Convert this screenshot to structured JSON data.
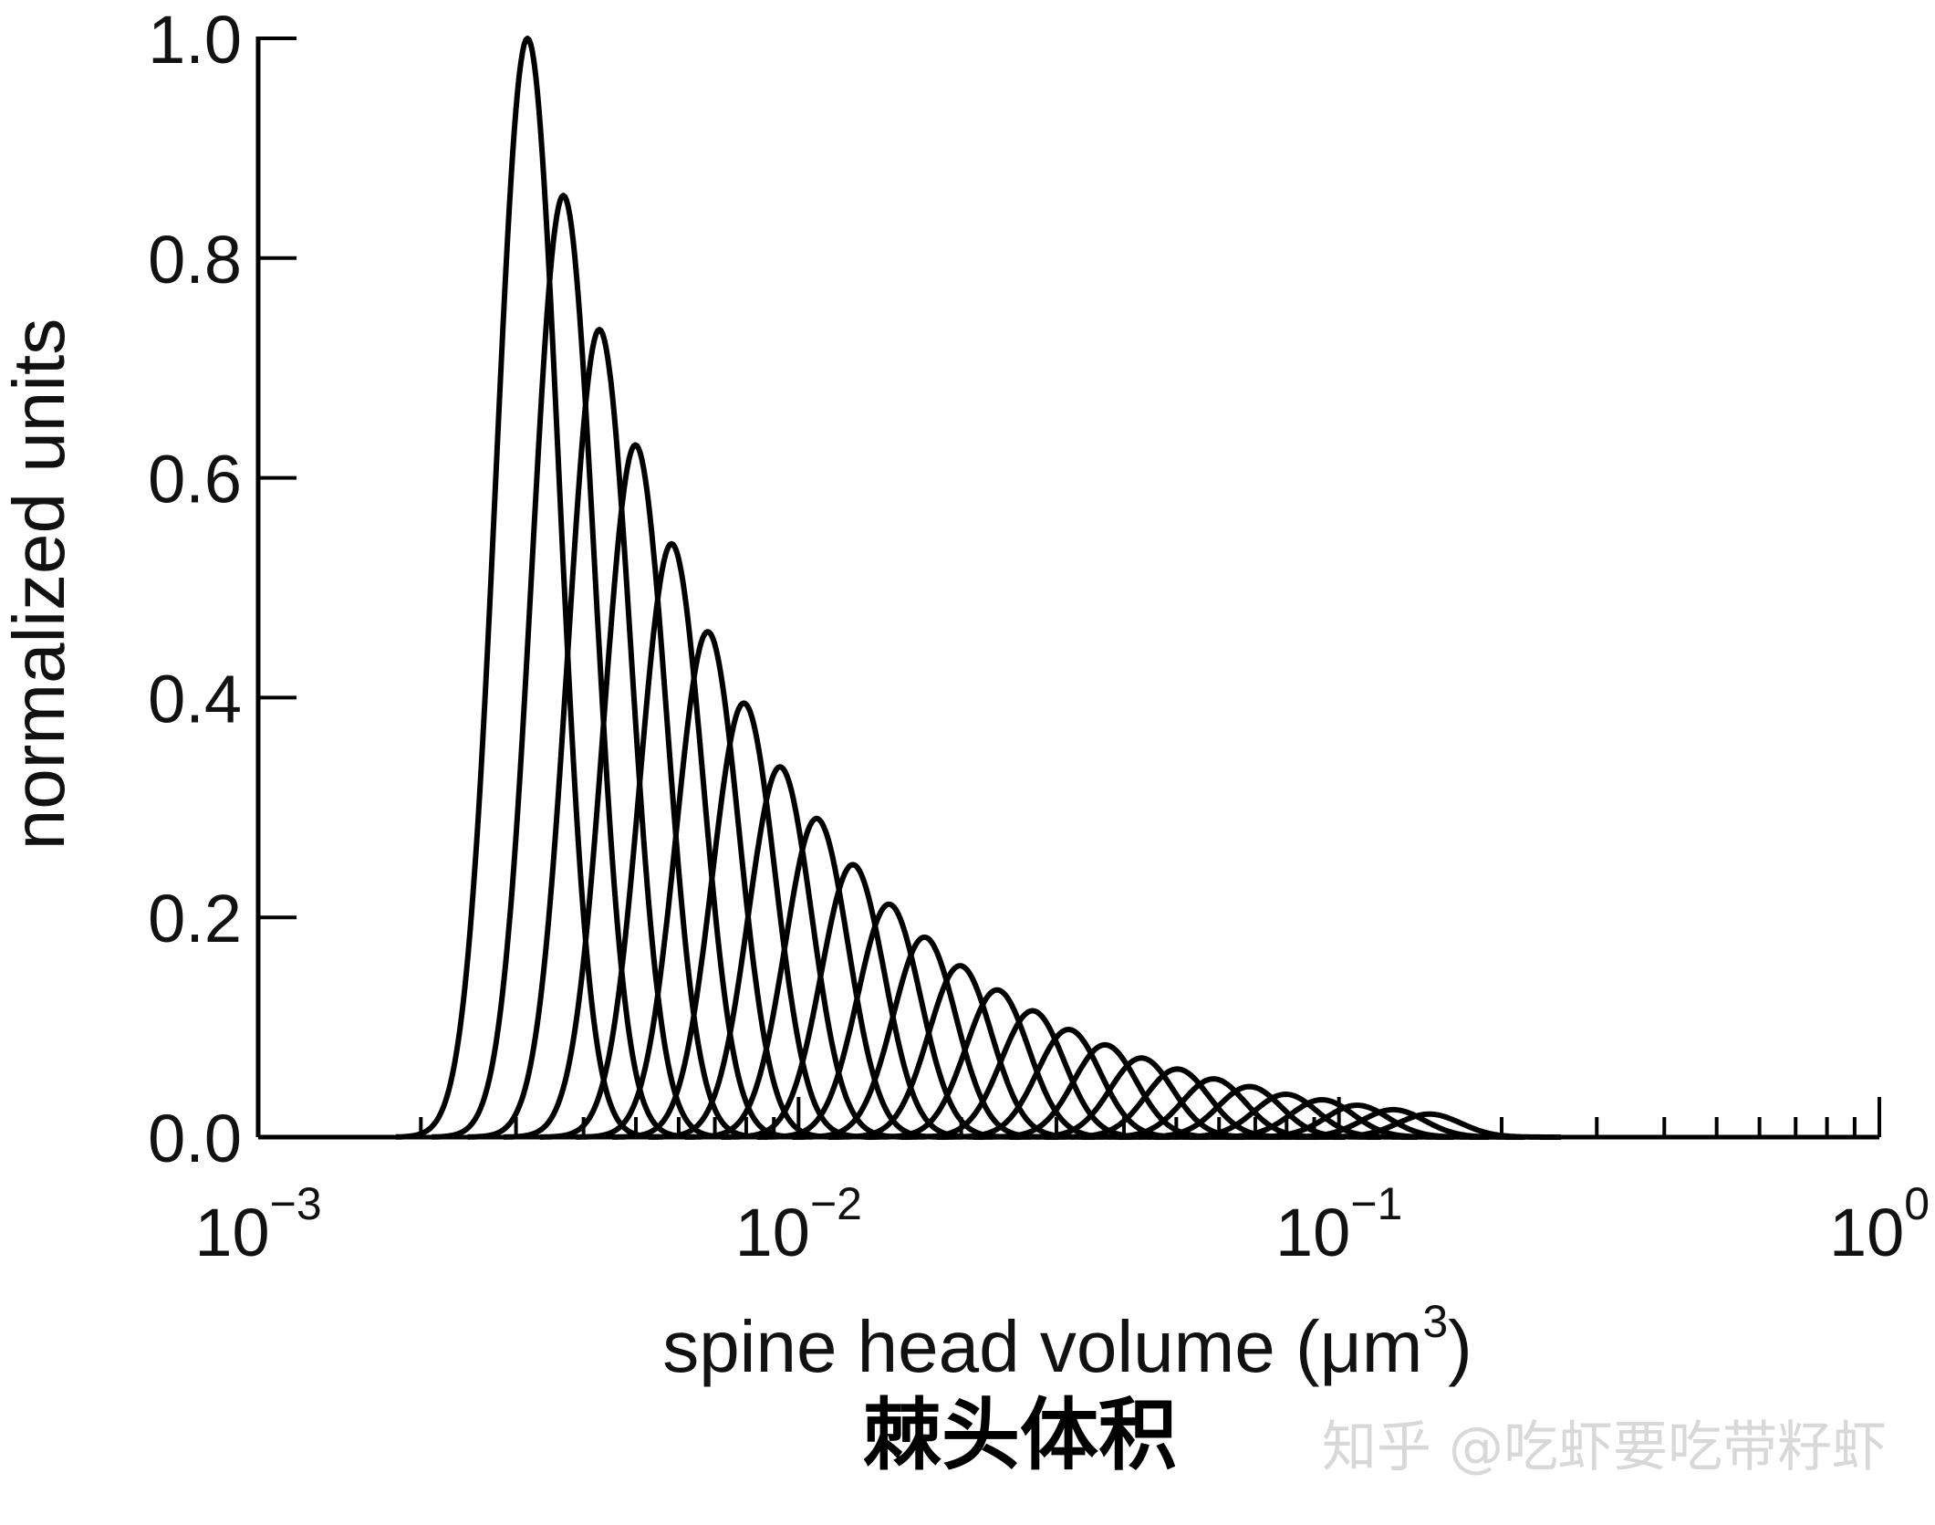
{
  "chart_data": {
    "type": "line",
    "xscale": "log",
    "xlim": [
      0.001,
      1
    ],
    "ylim": [
      0,
      1
    ],
    "xlabel": "spine head volume (μm",
    "xlabel_sup": "3",
    "xlabel_tail": ")",
    "ylabel": "normalized units",
    "grid": false,
    "x_ticks": [
      {
        "value": 0.001,
        "base": "10",
        "exp": "−3"
      },
      {
        "value": 0.01,
        "base": "10",
        "exp": "−2"
      },
      {
        "value": 0.1,
        "base": "10",
        "exp": "−1"
      },
      {
        "value": 1,
        "base": "10",
        "exp": "0"
      }
    ],
    "y_ticks": [
      {
        "value": 0,
        "label": "0.0"
      },
      {
        "value": 0.2,
        "label": "0.2"
      },
      {
        "value": 0.4,
        "label": "0.4"
      },
      {
        "value": 0.6,
        "label": "0.6"
      },
      {
        "value": 0.8,
        "label": "0.8"
      },
      {
        "value": 1.0,
        "label": "1.0"
      }
    ],
    "curve_shape": "lognormal",
    "series": [
      {
        "peak_x": 0.00315,
        "peak_y": 1.0
      },
      {
        "peak_x": 0.00367,
        "peak_y": 0.857
      },
      {
        "peak_x": 0.00428,
        "peak_y": 0.735
      },
      {
        "peak_x": 0.00499,
        "peak_y": 0.63
      },
      {
        "peak_x": 0.00582,
        "peak_y": 0.54
      },
      {
        "peak_x": 0.00679,
        "peak_y": 0.46
      },
      {
        "peak_x": 0.00792,
        "peak_y": 0.395
      },
      {
        "peak_x": 0.00924,
        "peak_y": 0.337
      },
      {
        "peak_x": 0.0108,
        "peak_y": 0.29
      },
      {
        "peak_x": 0.0126,
        "peak_y": 0.248
      },
      {
        "peak_x": 0.0147,
        "peak_y": 0.212
      },
      {
        "peak_x": 0.0171,
        "peak_y": 0.182
      },
      {
        "peak_x": 0.0199,
        "peak_y": 0.156
      },
      {
        "peak_x": 0.0233,
        "peak_y": 0.134
      },
      {
        "peak_x": 0.0271,
        "peak_y": 0.115
      },
      {
        "peak_x": 0.0316,
        "peak_y": 0.098
      },
      {
        "peak_x": 0.0369,
        "peak_y": 0.084
      },
      {
        "peak_x": 0.0431,
        "peak_y": 0.072
      },
      {
        "peak_x": 0.0502,
        "peak_y": 0.062
      },
      {
        "peak_x": 0.0586,
        "peak_y": 0.053
      },
      {
        "peak_x": 0.0683,
        "peak_y": 0.046
      },
      {
        "peak_x": 0.0797,
        "peak_y": 0.039
      },
      {
        "peak_x": 0.093,
        "peak_y": 0.034
      },
      {
        "peak_x": 0.108,
        "peak_y": 0.029
      },
      {
        "peak_x": 0.126,
        "peak_y": 0.025
      },
      {
        "peak_x": 0.147,
        "peak_y": 0.021
      }
    ]
  },
  "caption": "棘头体积",
  "watermark": "知乎 @吃虾要吃带籽虾"
}
